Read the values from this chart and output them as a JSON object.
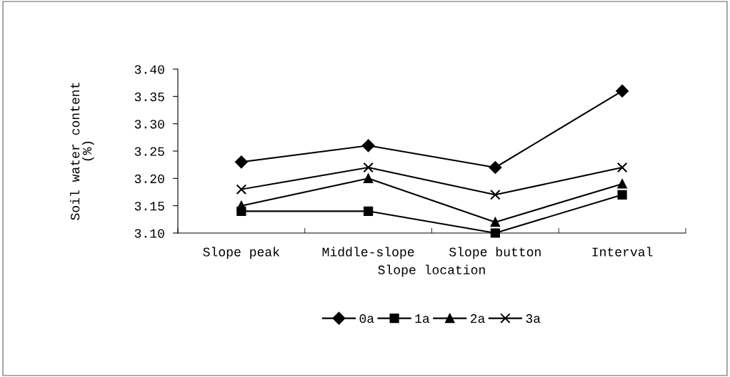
{
  "chart_data": {
    "type": "line",
    "xlabel": "Slope location",
    "ylabel": "Soil water content (%)",
    "categories": [
      "Slope peak",
      "Middle-slope",
      "Slope button",
      "Interval"
    ],
    "series": [
      {
        "name": "0a",
        "color": "#000000",
        "marker": "diamond",
        "values": [
          3.23,
          3.26,
          3.22,
          3.36
        ]
      },
      {
        "name": "1a",
        "color": "#000000",
        "marker": "square",
        "values": [
          3.14,
          3.14,
          3.1,
          3.17
        ]
      },
      {
        "name": "2a",
        "color": "#000000",
        "marker": "triangle",
        "values": [
          3.15,
          3.2,
          3.12,
          3.19
        ]
      },
      {
        "name": "3a",
        "color": "#000000",
        "marker": "cross",
        "values": [
          3.18,
          3.22,
          3.17,
          3.22
        ]
      }
    ],
    "ylim": [
      3.1,
      3.4
    ],
    "yticks": [
      {
        "value": 3.1,
        "label": "3.10"
      },
      3.15,
      {
        "value": 3.2,
        "label": "3.20"
      },
      3.25,
      {
        "value": 3.3,
        "label": "3.30"
      },
      3.35,
      {
        "value": 3.4,
        "label": "3.40"
      }
    ],
    "grid": false,
    "legend": "bottom",
    "line_style": "solid"
  }
}
